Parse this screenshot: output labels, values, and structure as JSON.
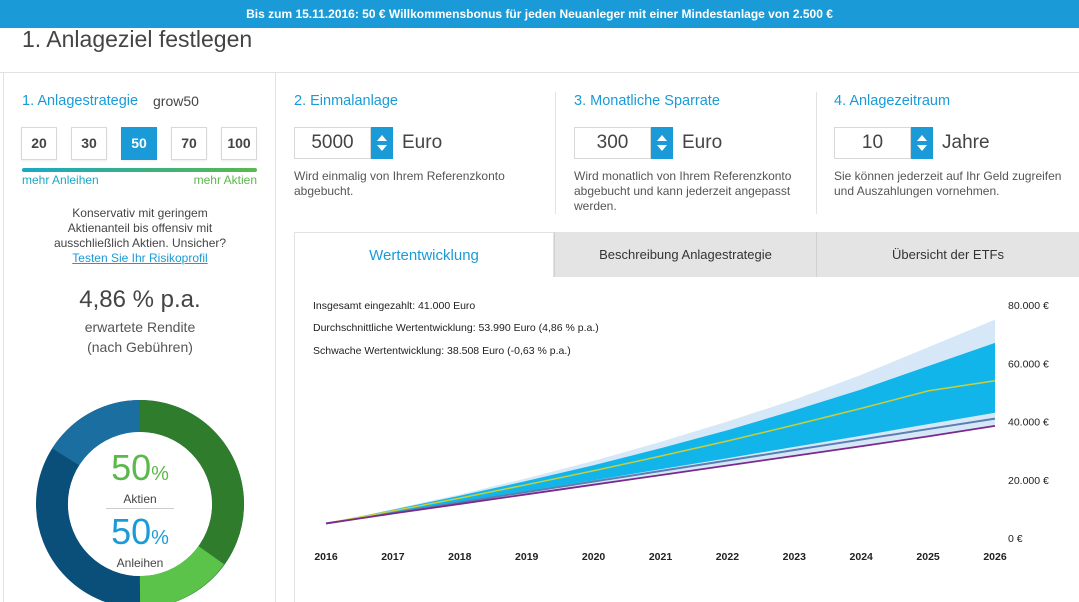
{
  "banner": "Bis zum 15.11.2016: 50 € Willkommensbonus für jeden Neuanleger mit einer Mindestanlage von 2.500 €",
  "page_title": "1. Anlageziel festlegen",
  "strategy": {
    "heading": "1. Anlagestrategie",
    "name": "grow50",
    "options": [
      "20",
      "30",
      "50",
      "70",
      "100"
    ],
    "selected": "50",
    "slider_left": "mehr Anleihen",
    "slider_right": "mehr Aktien",
    "desc_text": "Konservativ mit geringem Aktienanteil bis offensiv mit ausschließlich Aktien. Unsicher?",
    "desc_link": "Testen Sie Ihr Risikoprofil",
    "return_value": "4,86 % p.a.",
    "return_label": "erwartete Rendite",
    "return_note": "(nach Gebühren)",
    "stocks_pct": "50",
    "stocks_label": "Aktien",
    "bonds_pct": "50",
    "bonds_label": "Anleihen",
    "pct_sign": "%",
    "colors": {
      "stocks": "#2f7d2c",
      "bonds": "#0a4f7a",
      "accent": "#1a9bd7"
    }
  },
  "one_time": {
    "heading": "2. Einmalanlage",
    "value": "5000",
    "unit": "Euro",
    "help": "Wird einmalig von Ihrem Referenzkonto abgebucht."
  },
  "monthly": {
    "heading": "3. Monatliche Sparrate",
    "value": "300",
    "unit": "Euro",
    "help": "Wird monatlich von Ihrem Referenzkonto abgebucht und kann jederzeit angepasst werden."
  },
  "period": {
    "heading": "4. Anlagezeitraum",
    "value": "10",
    "unit": "Jahre",
    "help": "Sie können jederzeit auf Ihr Geld zugreifen und Auszahlungen vornehmen."
  },
  "tabs": [
    "Wertentwicklung",
    "Beschreibung Anlagestrategie",
    "Übersicht der ETFs"
  ],
  "chart_data": {
    "type": "area",
    "notes": [
      "Insgesamt eingezahlt: 41.000 Euro",
      "Durchschnittliche Wertentwicklung: 53.990 Euro (4,86 % p.a.)",
      "Schwache Wertentwicklung: 38.508 Euro (-0,63 % p.a.)"
    ],
    "x": [
      2016,
      2017,
      2018,
      2019,
      2020,
      2021,
      2022,
      2023,
      2024,
      2025,
      2026
    ],
    "x_labels": [
      "2016",
      "2017",
      "2018",
      "2019",
      "2020",
      "2021",
      "2022",
      "2023",
      "2024",
      "2025",
      "2026"
    ],
    "y_ticks": [
      0,
      20000,
      40000,
      60000,
      80000
    ],
    "y_tick_labels": [
      "0 €",
      "20.000 €",
      "40.000 €",
      "60.000 €",
      "80.000 €"
    ],
    "ylim": [
      0,
      80000
    ],
    "series": [
      {
        "role": "outer_upper",
        "values": [
          5000,
          9900,
          15000,
          20500,
          26500,
          33000,
          40000,
          47500,
          56000,
          65500,
          75000
        ],
        "color": "#d6e8f7"
      },
      {
        "role": "inner_upper",
        "values": [
          5000,
          9700,
          14500,
          19600,
          25000,
          30800,
          37000,
          43800,
          51000,
          59000,
          67000
        ],
        "color": "#12b5ea"
      },
      {
        "role": "average",
        "values": [
          5000,
          9300,
          13700,
          18300,
          23100,
          28100,
          33300,
          38800,
          44500,
          50500,
          54000
        ],
        "color": "#c7cf3a"
      },
      {
        "role": "paid_in",
        "values": [
          5000,
          8600,
          12200,
          15800,
          19400,
          23000,
          26600,
          30200,
          33800,
          37400,
          41000
        ],
        "color": "#5a7fb0"
      },
      {
        "role": "inner_lower",
        "values": [
          5000,
          8700,
          12400,
          16100,
          19800,
          23600,
          27400,
          31300,
          35100,
          39100,
          43000
        ],
        "color": "#12b5ea"
      },
      {
        "role": "weak",
        "values": [
          5000,
          8400,
          11700,
          15000,
          18300,
          21600,
          24900,
          28200,
          31500,
          34900,
          38508
        ],
        "color": "#7b2a8c"
      }
    ]
  }
}
